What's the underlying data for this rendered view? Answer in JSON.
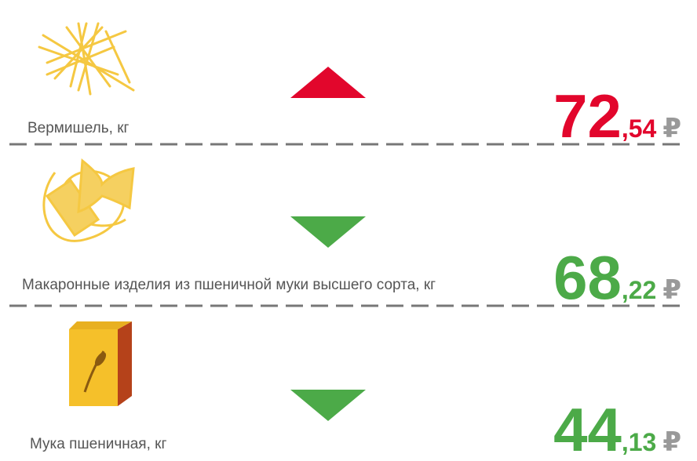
{
  "items": [
    {
      "label": "Вермишель, кг",
      "price_int": "72",
      "price_frac": ",54",
      "currency": "₽",
      "trend": "up",
      "color": "#e2062c"
    },
    {
      "label": "Макаронные изделия из пшеничной муки высшего сорта, кг",
      "price_int": "68",
      "price_frac": ",22",
      "currency": "₽",
      "trend": "down",
      "color": "#4caa48"
    },
    {
      "label": "Мука пшеничная, кг",
      "price_int": "44",
      "price_frac": ",13",
      "currency": "₽",
      "trend": "down",
      "color": "#4caa48"
    }
  ]
}
